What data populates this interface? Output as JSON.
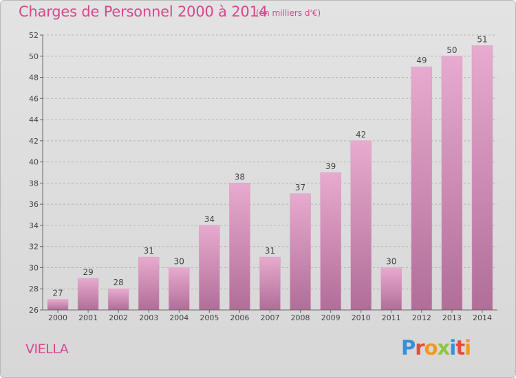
{
  "header": {
    "title": "Charges de Personnel 2000 à 2014",
    "subtitle": "(en milliers d'€)"
  },
  "footer": {
    "commune": "VIELLA",
    "logo_text": "Proxiti",
    "logo_colors": [
      "#3a8fd6",
      "#e64b3c",
      "#f29a1c",
      "#8cc63f",
      "#3a8fd6",
      "#e64b3c",
      "#f29a1c"
    ]
  },
  "colors": {
    "bar_top": "#e8aace",
    "bar_bottom": "#b06e98",
    "title": "#d9468e",
    "grid": "#b5b5b5"
  },
  "chart_data": {
    "type": "bar",
    "title": "Charges de Personnel 2000 à 2014",
    "subtitle": "(en milliers d'€)",
    "categories": [
      "2000",
      "2001",
      "2002",
      "2003",
      "2004",
      "2005",
      "2006",
      "2007",
      "2008",
      "2009",
      "2010",
      "2011",
      "2012",
      "2013",
      "2014"
    ],
    "values": [
      27,
      29,
      28,
      31,
      30,
      34,
      38,
      31,
      37,
      39,
      42,
      30,
      49,
      50,
      51
    ],
    "ylim": [
      26,
      52
    ],
    "yticks": [
      26,
      28,
      30,
      32,
      34,
      36,
      38,
      40,
      42,
      44,
      46,
      48,
      50,
      52
    ],
    "grid": true,
    "xlabel": "",
    "ylabel": ""
  }
}
